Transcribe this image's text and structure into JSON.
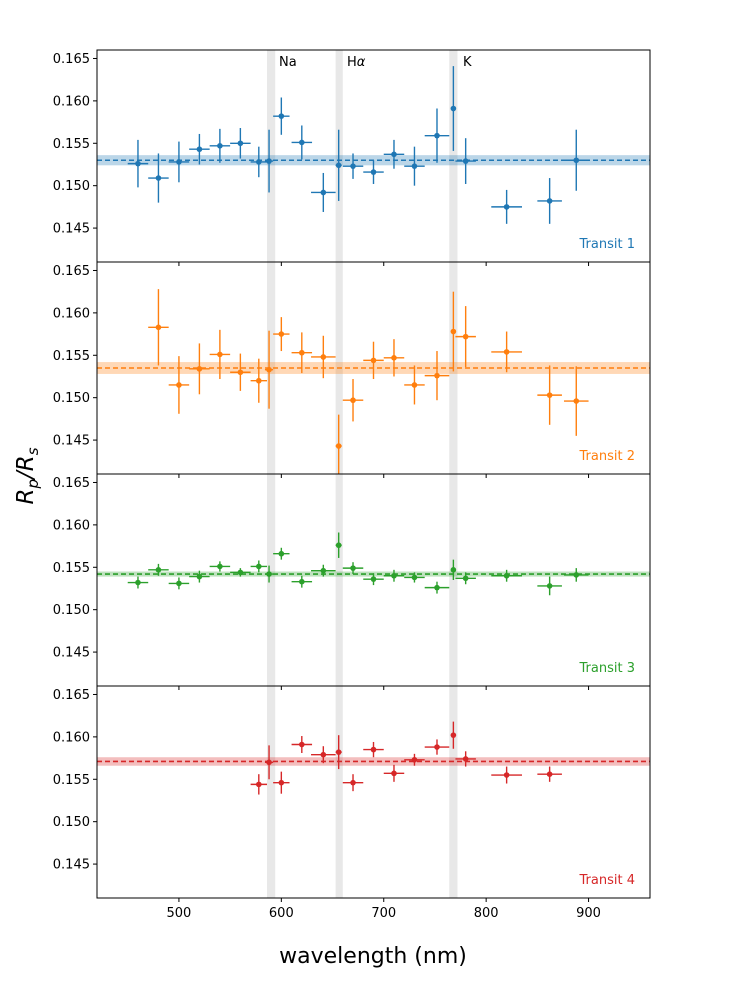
{
  "figure": {
    "xlabel": "wavelength (nm)",
    "ylabel_main": "R",
    "ylabel_sub1": "p",
    "ylabel_slash": "/R",
    "ylabel_sub2": "s",
    "line_labels": [
      "Na",
      "H",
      "α",
      "K"
    ]
  },
  "chart_data": [
    {
      "type": "scatter",
      "title": "Transit 1",
      "color": "#1f77b4",
      "xlim": [
        420,
        960
      ],
      "ylim": [
        0.141,
        0.166
      ],
      "xticks": [
        500,
        600,
        700,
        800,
        900
      ],
      "xtick_labels": [
        "500",
        "600",
        "700",
        "800",
        "900"
      ],
      "yticks": [
        0.145,
        0.15,
        0.155,
        0.16,
        0.165
      ],
      "ytick_labels": [
        "0.145",
        "0.150",
        "0.155",
        "0.160",
        "0.165"
      ],
      "mean": 0.153,
      "mean_err": 0.0006,
      "bands": [
        {
          "name": "Na",
          "range": [
            586,
            594
          ]
        },
        {
          "name": "Hα",
          "range": [
            653,
            660
          ]
        },
        {
          "name": "K",
          "range": [
            764,
            772
          ]
        }
      ],
      "points": [
        {
          "x": 460,
          "xerr": 10,
          "y": 0.1526,
          "yerr": 0.0028
        },
        {
          "x": 480,
          "xerr": 10,
          "y": 0.1509,
          "yerr": 0.0029
        },
        {
          "x": 500,
          "xerr": 10,
          "y": 0.1528,
          "yerr": 0.0024
        },
        {
          "x": 520,
          "xerr": 10,
          "y": 0.1543,
          "yerr": 0.0018
        },
        {
          "x": 540,
          "xerr": 10,
          "y": 0.1547,
          "yerr": 0.002
        },
        {
          "x": 560,
          "xerr": 10,
          "y": 0.155,
          "yerr": 0.0018
        },
        {
          "x": 578,
          "xerr": 8,
          "y": 0.1528,
          "yerr": 0.0018
        },
        {
          "x": 588,
          "xerr": 4,
          "y": 0.1529,
          "yerr": 0.0037
        },
        {
          "x": 600,
          "xerr": 8,
          "y": 0.1582,
          "yerr": 0.0022
        },
        {
          "x": 620,
          "xerr": 10,
          "y": 0.1551,
          "yerr": 0.002
        },
        {
          "x": 641,
          "xerr": 12,
          "y": 0.1492,
          "yerr": 0.0023
        },
        {
          "x": 656,
          "xerr": 3,
          "y": 0.1524,
          "yerr": 0.0042
        },
        {
          "x": 670,
          "xerr": 10,
          "y": 0.1523,
          "yerr": 0.0015
        },
        {
          "x": 690,
          "xerr": 10,
          "y": 0.1516,
          "yerr": 0.0014
        },
        {
          "x": 710,
          "xerr": 10,
          "y": 0.1537,
          "yerr": 0.0017
        },
        {
          "x": 730,
          "xerr": 10,
          "y": 0.1523,
          "yerr": 0.0023
        },
        {
          "x": 752,
          "xerr": 12,
          "y": 0.1559,
          "yerr": 0.0032
        },
        {
          "x": 768,
          "xerr": 2,
          "y": 0.1591,
          "yerr": 0.005
        },
        {
          "x": 780,
          "xerr": 10,
          "y": 0.1529,
          "yerr": 0.0027
        },
        {
          "x": 820,
          "xerr": 15,
          "y": 0.1475,
          "yerr": 0.002
        },
        {
          "x": 862,
          "xerr": 12,
          "y": 0.1482,
          "yerr": 0.0027
        },
        {
          "x": 888,
          "xerr": 12,
          "y": 0.153,
          "yerr": 0.0036
        }
      ]
    },
    {
      "type": "scatter",
      "title": "Transit 2",
      "color": "#ff7f0e",
      "xlim": [
        420,
        960
      ],
      "ylim": [
        0.141,
        0.166
      ],
      "xticks": [
        500,
        600,
        700,
        800,
        900
      ],
      "xtick_labels": [
        "500",
        "600",
        "700",
        "800",
        "900"
      ],
      "yticks": [
        0.145,
        0.15,
        0.155,
        0.16,
        0.165
      ],
      "ytick_labels": [
        "0.145",
        "0.150",
        "0.155",
        "0.160",
        "0.165"
      ],
      "mean": 0.1535,
      "mean_err": 0.0007,
      "bands": [
        {
          "name": "Na",
          "range": [
            586,
            594
          ]
        },
        {
          "name": "Hα",
          "range": [
            653,
            660
          ]
        },
        {
          "name": "K",
          "range": [
            764,
            772
          ]
        }
      ],
      "points": [
        {
          "x": 480,
          "xerr": 10,
          "y": 0.1583,
          "yerr": 0.0045
        },
        {
          "x": 500,
          "xerr": 10,
          "y": 0.1515,
          "yerr": 0.0034
        },
        {
          "x": 520,
          "xerr": 10,
          "y": 0.1534,
          "yerr": 0.003
        },
        {
          "x": 540,
          "xerr": 10,
          "y": 0.1551,
          "yerr": 0.0029
        },
        {
          "x": 560,
          "xerr": 10,
          "y": 0.153,
          "yerr": 0.0022
        },
        {
          "x": 578,
          "xerr": 8,
          "y": 0.152,
          "yerr": 0.0026
        },
        {
          "x": 588,
          "xerr": 4,
          "y": 0.1533,
          "yerr": 0.0046
        },
        {
          "x": 600,
          "xerr": 8,
          "y": 0.1575,
          "yerr": 0.002
        },
        {
          "x": 620,
          "xerr": 10,
          "y": 0.1553,
          "yerr": 0.0024
        },
        {
          "x": 641,
          "xerr": 12,
          "y": 0.1548,
          "yerr": 0.0025
        },
        {
          "x": 656,
          "xerr": 3,
          "y": 0.1443,
          "yerr": 0.0037
        },
        {
          "x": 670,
          "xerr": 10,
          "y": 0.1497,
          "yerr": 0.0025
        },
        {
          "x": 690,
          "xerr": 10,
          "y": 0.1544,
          "yerr": 0.0022
        },
        {
          "x": 710,
          "xerr": 10,
          "y": 0.1547,
          "yerr": 0.0022
        },
        {
          "x": 730,
          "xerr": 10,
          "y": 0.1515,
          "yerr": 0.0023
        },
        {
          "x": 752,
          "xerr": 12,
          "y": 0.1526,
          "yerr": 0.0029
        },
        {
          "x": 768,
          "xerr": 2,
          "y": 0.1578,
          "yerr": 0.0047
        },
        {
          "x": 780,
          "xerr": 10,
          "y": 0.1572,
          "yerr": 0.0036
        },
        {
          "x": 820,
          "xerr": 15,
          "y": 0.1554,
          "yerr": 0.0024
        },
        {
          "x": 862,
          "xerr": 12,
          "y": 0.1503,
          "yerr": 0.0035
        },
        {
          "x": 888,
          "xerr": 12,
          "y": 0.1496,
          "yerr": 0.0041
        }
      ]
    },
    {
      "type": "scatter",
      "title": "Transit 3",
      "color": "#2ca02c",
      "xlim": [
        420,
        960
      ],
      "ylim": [
        0.141,
        0.166
      ],
      "xticks": [
        500,
        600,
        700,
        800,
        900
      ],
      "xtick_labels": [
        "500",
        "600",
        "700",
        "800",
        "900"
      ],
      "yticks": [
        0.145,
        0.15,
        0.155,
        0.16,
        0.165
      ],
      "ytick_labels": [
        "0.145",
        "0.150",
        "0.155",
        "0.160",
        "0.165"
      ],
      "mean": 0.1542,
      "mean_err": 0.0003,
      "bands": [
        {
          "name": "Na",
          "range": [
            586,
            594
          ]
        },
        {
          "name": "Hα",
          "range": [
            653,
            660
          ]
        },
        {
          "name": "K",
          "range": [
            764,
            772
          ]
        }
      ],
      "points": [
        {
          "x": 460,
          "xerr": 10,
          "y": 0.1532,
          "yerr": 0.0007
        },
        {
          "x": 480,
          "xerr": 10,
          "y": 0.1547,
          "yerr": 0.0007
        },
        {
          "x": 500,
          "xerr": 10,
          "y": 0.1531,
          "yerr": 0.0007
        },
        {
          "x": 520,
          "xerr": 10,
          "y": 0.1539,
          "yerr": 0.0007
        },
        {
          "x": 540,
          "xerr": 10,
          "y": 0.1551,
          "yerr": 0.0006
        },
        {
          "x": 560,
          "xerr": 10,
          "y": 0.1544,
          "yerr": 0.0005
        },
        {
          "x": 578,
          "xerr": 8,
          "y": 0.1551,
          "yerr": 0.0007
        },
        {
          "x": 588,
          "xerr": 4,
          "y": 0.1542,
          "yerr": 0.001
        },
        {
          "x": 600,
          "xerr": 8,
          "y": 0.1566,
          "yerr": 0.0007
        },
        {
          "x": 620,
          "xerr": 10,
          "y": 0.1533,
          "yerr": 0.0007
        },
        {
          "x": 641,
          "xerr": 12,
          "y": 0.1546,
          "yerr": 0.0007
        },
        {
          "x": 656,
          "xerr": 3,
          "y": 0.1576,
          "yerr": 0.0015
        },
        {
          "x": 670,
          "xerr": 10,
          "y": 0.1549,
          "yerr": 0.0007
        },
        {
          "x": 690,
          "xerr": 10,
          "y": 0.1536,
          "yerr": 0.0007
        },
        {
          "x": 710,
          "xerr": 10,
          "y": 0.154,
          "yerr": 0.0007
        },
        {
          "x": 730,
          "xerr": 10,
          "y": 0.1538,
          "yerr": 0.0006
        },
        {
          "x": 752,
          "xerr": 12,
          "y": 0.1526,
          "yerr": 0.0007
        },
        {
          "x": 768,
          "xerr": 2,
          "y": 0.1547,
          "yerr": 0.0012
        },
        {
          "x": 780,
          "xerr": 10,
          "y": 0.1537,
          "yerr": 0.0007
        },
        {
          "x": 820,
          "xerr": 15,
          "y": 0.154,
          "yerr": 0.0007
        },
        {
          "x": 862,
          "xerr": 12,
          "y": 0.1528,
          "yerr": 0.0011
        },
        {
          "x": 888,
          "xerr": 12,
          "y": 0.1541,
          "yerr": 0.0008
        }
      ]
    },
    {
      "type": "scatter",
      "title": "Transit 4",
      "color": "#d62728",
      "xlim": [
        420,
        960
      ],
      "ylim": [
        0.141,
        0.166
      ],
      "xticks": [
        500,
        600,
        700,
        800,
        900
      ],
      "xtick_labels": [
        "500",
        "600",
        "700",
        "800",
        "900"
      ],
      "yticks": [
        0.145,
        0.15,
        0.155,
        0.16,
        0.165
      ],
      "ytick_labels": [
        "0.145",
        "0.150",
        "0.155",
        "0.160",
        "0.165"
      ],
      "mean": 0.1571,
      "mean_err": 0.0005,
      "bands": [
        {
          "name": "Na",
          "range": [
            586,
            594
          ]
        },
        {
          "name": "Hα",
          "range": [
            653,
            660
          ]
        },
        {
          "name": "K",
          "range": [
            764,
            772
          ]
        }
      ],
      "points": [
        {
          "x": 578,
          "xerr": 8,
          "y": 0.1544,
          "yerr": 0.0012
        },
        {
          "x": 588,
          "xerr": 4,
          "y": 0.157,
          "yerr": 0.002
        },
        {
          "x": 600,
          "xerr": 8,
          "y": 0.1546,
          "yerr": 0.0013
        },
        {
          "x": 620,
          "xerr": 10,
          "y": 0.1591,
          "yerr": 0.001
        },
        {
          "x": 641,
          "xerr": 12,
          "y": 0.1579,
          "yerr": 0.001
        },
        {
          "x": 656,
          "xerr": 3,
          "y": 0.1582,
          "yerr": 0.002
        },
        {
          "x": 670,
          "xerr": 10,
          "y": 0.1546,
          "yerr": 0.001
        },
        {
          "x": 690,
          "xerr": 10,
          "y": 0.1585,
          "yerr": 0.0009
        },
        {
          "x": 710,
          "xerr": 10,
          "y": 0.1557,
          "yerr": 0.001
        },
        {
          "x": 730,
          "xerr": 10,
          "y": 0.1573,
          "yerr": 0.0007
        },
        {
          "x": 752,
          "xerr": 12,
          "y": 0.1588,
          "yerr": 0.0009
        },
        {
          "x": 768,
          "xerr": 2,
          "y": 0.1602,
          "yerr": 0.0016
        },
        {
          "x": 780,
          "xerr": 10,
          "y": 0.1574,
          "yerr": 0.0009
        },
        {
          "x": 820,
          "xerr": 15,
          "y": 0.1555,
          "yerr": 0.001
        },
        {
          "x": 862,
          "xerr": 12,
          "y": 0.1556,
          "yerr": 0.0009
        }
      ]
    }
  ]
}
